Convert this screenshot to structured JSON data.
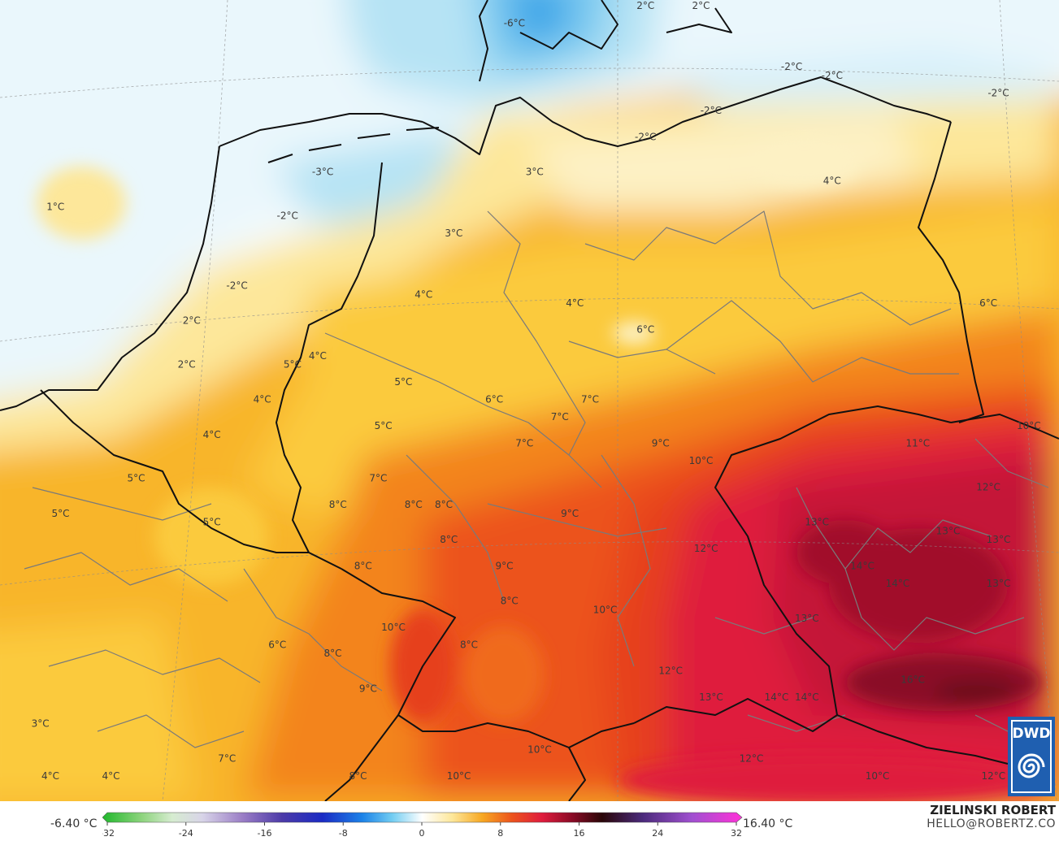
{
  "colors": {
    "v_neg6": "#9ad6f0",
    "v_neg4": "#b6e3f4",
    "v_neg2": "#d7f0fa",
    "v_0": "#f4fbfe",
    "v_1": "#fdf1c4",
    "v_2": "#fde79a",
    "v_3": "#fdd96a",
    "v_4": "#fbca3e",
    "v_5": "#f8b52a",
    "v_6": "#f69c23",
    "v_7": "#f3841f",
    "v_8": "#f06b1d",
    "v_9": "#ec531d",
    "v_10": "#e6401f",
    "v_11": "#e02c2a",
    "v_12": "#df1c3d",
    "v_13": "#c41538",
    "v_14": "#a10d2b",
    "v_16": "#6e0a1f",
    "border_country": "#111111",
    "border_region": "#7a7a7a",
    "grid_dash": "#8c8c8c"
  },
  "temperature_labels": [
    {
      "text": "-6°C",
      "lon": 10.0,
      "lat": 55.4
    },
    {
      "text": "2°C",
      "lon": 12.6,
      "lat": 55.6
    },
    {
      "text": "2°C",
      "lon": 13.7,
      "lat": 55.6
    },
    {
      "text": "-2°C",
      "lon": 15.5,
      "lat": 54.9
    },
    {
      "text": "-2°C",
      "lon": 16.3,
      "lat": 54.8
    },
    {
      "text": "-2°C",
      "lon": 19.6,
      "lat": 54.6
    },
    {
      "text": "-2°C",
      "lon": 13.9,
      "lat": 54.4
    },
    {
      "text": "-2°C",
      "lon": 12.6,
      "lat": 54.1
    },
    {
      "text": "-3°C",
      "lon": 6.2,
      "lat": 53.7
    },
    {
      "text": "3°C",
      "lon": 10.4,
      "lat": 53.7
    },
    {
      "text": "4°C",
      "lon": 16.3,
      "lat": 53.6
    },
    {
      "text": "1°C",
      "lon": 0.9,
      "lat": 53.3
    },
    {
      "text": "-2°C",
      "lon": 5.5,
      "lat": 53.2
    },
    {
      "text": "3°C",
      "lon": 8.8,
      "lat": 53.0
    },
    {
      "text": "-2°C",
      "lon": 4.5,
      "lat": 52.4
    },
    {
      "text": "4°C",
      "lon": 8.2,
      "lat": 52.3
    },
    {
      "text": "4°C",
      "lon": 11.2,
      "lat": 52.2
    },
    {
      "text": "6°C",
      "lon": 19.4,
      "lat": 52.2
    },
    {
      "text": "2°C",
      "lon": 3.6,
      "lat": 52.0
    },
    {
      "text": "6°C",
      "lon": 12.6,
      "lat": 51.9
    },
    {
      "text": "4°C",
      "lon": 6.1,
      "lat": 51.6
    },
    {
      "text": "5°C",
      "lon": 5.6,
      "lat": 51.5
    },
    {
      "text": "2°C",
      "lon": 3.5,
      "lat": 51.5
    },
    {
      "text": "5°C",
      "lon": 7.8,
      "lat": 51.3
    },
    {
      "text": "6°C",
      "lon": 9.6,
      "lat": 51.1
    },
    {
      "text": "7°C",
      "lon": 11.5,
      "lat": 51.1
    },
    {
      "text": "4°C",
      "lon": 5.0,
      "lat": 51.1
    },
    {
      "text": "7°C",
      "lon": 10.9,
      "lat": 50.9
    },
    {
      "text": "5°C",
      "lon": 7.4,
      "lat": 50.8
    },
    {
      "text": "10°C",
      "lon": 20.2,
      "lat": 50.8
    },
    {
      "text": "4°C",
      "lon": 4.0,
      "lat": 50.7
    },
    {
      "text": "7°C",
      "lon": 10.2,
      "lat": 50.6
    },
    {
      "text": "9°C",
      "lon": 12.9,
      "lat": 50.6
    },
    {
      "text": "11°C",
      "lon": 18.0,
      "lat": 50.6
    },
    {
      "text": "10°C",
      "lon": 13.7,
      "lat": 50.4
    },
    {
      "text": "5°C",
      "lon": 2.5,
      "lat": 50.2
    },
    {
      "text": "7°C",
      "lon": 7.3,
      "lat": 50.2
    },
    {
      "text": "12°C",
      "lon": 19.4,
      "lat": 50.1
    },
    {
      "text": "8°C",
      "lon": 6.5,
      "lat": 49.9
    },
    {
      "text": "8°C",
      "lon": 8.0,
      "lat": 49.9
    },
    {
      "text": "8°C",
      "lon": 8.6,
      "lat": 49.9
    },
    {
      "text": "5°C",
      "lon": 1.0,
      "lat": 49.8
    },
    {
      "text": "9°C",
      "lon": 11.1,
      "lat": 49.8
    },
    {
      "text": "5°C",
      "lon": 4.0,
      "lat": 49.7
    },
    {
      "text": "13°C",
      "lon": 16.0,
      "lat": 49.7
    },
    {
      "text": "13°C",
      "lon": 18.6,
      "lat": 49.6
    },
    {
      "text": "13°C",
      "lon": 19.6,
      "lat": 49.5
    },
    {
      "text": "8°C",
      "lon": 8.7,
      "lat": 49.5
    },
    {
      "text": "12°C",
      "lon": 13.8,
      "lat": 49.4
    },
    {
      "text": "8°C",
      "lon": 7.0,
      "lat": 49.2
    },
    {
      "text": "9°C",
      "lon": 9.8,
      "lat": 49.2
    },
    {
      "text": "14°C",
      "lon": 16.9,
      "lat": 49.2
    },
    {
      "text": "14°C",
      "lon": 17.6,
      "lat": 49.0
    },
    {
      "text": "13°C",
      "lon": 19.6,
      "lat": 49.0
    },
    {
      "text": "8°C",
      "lon": 9.9,
      "lat": 48.8
    },
    {
      "text": "10°C",
      "lon": 11.8,
      "lat": 48.7
    },
    {
      "text": "13°C",
      "lon": 15.8,
      "lat": 48.6
    },
    {
      "text": "10°C",
      "lon": 7.6,
      "lat": 48.5
    },
    {
      "text": "6°C",
      "lon": 5.3,
      "lat": 48.3
    },
    {
      "text": "8°C",
      "lon": 9.1,
      "lat": 48.3
    },
    {
      "text": "8°C",
      "lon": 6.4,
      "lat": 48.2
    },
    {
      "text": "12°C",
      "lon": 13.1,
      "lat": 48.0
    },
    {
      "text": "16°C",
      "lon": 17.9,
      "lat": 47.9
    },
    {
      "text": "9°C",
      "lon": 7.1,
      "lat": 47.8
    },
    {
      "text": "13°C",
      "lon": 13.9,
      "lat": 47.7
    },
    {
      "text": "14°C",
      "lon": 15.2,
      "lat": 47.7
    },
    {
      "text": "14°C",
      "lon": 15.8,
      "lat": 47.7
    },
    {
      "text": "3°C",
      "lon": 0.6,
      "lat": 47.4
    },
    {
      "text": "10°C",
      "lon": 10.5,
      "lat": 47.1
    },
    {
      "text": "7°C",
      "lon": 4.3,
      "lat": 47.0
    },
    {
      "text": "12°C",
      "lon": 14.7,
      "lat": 47.0
    },
    {
      "text": "4°C",
      "lon": 0.8,
      "lat": 46.8
    },
    {
      "text": "4°C",
      "lon": 2.0,
      "lat": 46.8
    },
    {
      "text": "8°C",
      "lon": 6.9,
      "lat": 46.8
    },
    {
      "text": "10°C",
      "lon": 8.9,
      "lat": 46.8
    },
    {
      "text": "10°C",
      "lon": 17.2,
      "lat": 46.8
    },
    {
      "text": "12°C",
      "lon": 19.5,
      "lat": 46.8
    }
  ],
  "legend": {
    "min_value": "-6.40 °C",
    "max_value": "16.40 °C",
    "ticks": [
      "-32",
      "-24",
      "-16",
      "-8",
      "0",
      "8",
      "16",
      "24",
      "32"
    ],
    "range": [
      -32,
      32
    ],
    "stops": [
      {
        "v": -32,
        "c": "#21b82c"
      },
      {
        "v": -28,
        "c": "#8fd47f"
      },
      {
        "v": -25,
        "c": "#d6ecd0"
      },
      {
        "v": -22,
        "c": "#d8d4e8"
      },
      {
        "v": -18,
        "c": "#9b7ec6"
      },
      {
        "v": -14,
        "c": "#4c3aa8"
      },
      {
        "v": -10,
        "c": "#1b2bc4"
      },
      {
        "v": -6,
        "c": "#1c82e8"
      },
      {
        "v": -3,
        "c": "#72cdf2"
      },
      {
        "v": 0,
        "c": "#ffffff"
      },
      {
        "v": 3,
        "c": "#fde79a"
      },
      {
        "v": 6,
        "c": "#f7a823"
      },
      {
        "v": 9,
        "c": "#ec531d"
      },
      {
        "v": 12,
        "c": "#df1c3d"
      },
      {
        "v": 15,
        "c": "#8a0b26"
      },
      {
        "v": 18,
        "c": "#2a0608"
      },
      {
        "v": 22,
        "c": "#4a2a7a"
      },
      {
        "v": 27,
        "c": "#a050d0"
      },
      {
        "v": 32,
        "c": "#ff32d8"
      }
    ]
  },
  "credit": {
    "name": "ZIELINSKI ROBERT",
    "email": "HELLO@ROBERTZ.CO"
  },
  "logo": {
    "text": "DWD",
    "color": "#1f5fb0"
  }
}
